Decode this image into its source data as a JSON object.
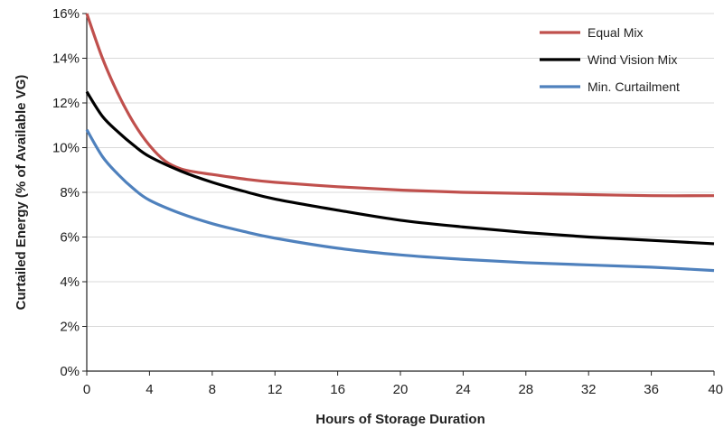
{
  "chart_data": {
    "type": "line",
    "title": "",
    "xlabel": "Hours of Storage Duration",
    "ylabel": "Curtailed Energy (% of Available VG)",
    "xlim": [
      0,
      40
    ],
    "ylim": [
      0,
      16
    ],
    "x_ticks": [
      0,
      4,
      8,
      12,
      16,
      20,
      24,
      28,
      32,
      36,
      40
    ],
    "y_ticks": [
      0,
      2,
      4,
      6,
      8,
      10,
      12,
      14,
      16
    ],
    "x_tick_labels": [
      "0",
      "4",
      "8",
      "12",
      "16",
      "20",
      "24",
      "28",
      "32",
      "36",
      "40"
    ],
    "y_tick_labels": [
      "0%",
      "2%",
      "4%",
      "6%",
      "8%",
      "10%",
      "12%",
      "14%",
      "16%"
    ],
    "grid": "horizontal",
    "legend_position": "top-right",
    "series": [
      {
        "name": "Equal Mix",
        "color": "#c0504d",
        "x": [
          0,
          1,
          2,
          3,
          4,
          5,
          6,
          7,
          8,
          10,
          12,
          16,
          20,
          24,
          28,
          32,
          36,
          40
        ],
        "y": [
          16.0,
          14.0,
          12.4,
          11.1,
          10.1,
          9.4,
          9.05,
          8.9,
          8.8,
          8.6,
          8.45,
          8.25,
          8.1,
          8.0,
          7.95,
          7.9,
          7.85,
          7.85
        ]
      },
      {
        "name": "Wind Vision Mix",
        "color": "#000000",
        "x": [
          0,
          1,
          2,
          3,
          4,
          6,
          8,
          10,
          12,
          16,
          20,
          24,
          28,
          32,
          36,
          40
        ],
        "y": [
          12.5,
          11.4,
          10.7,
          10.1,
          9.6,
          8.95,
          8.45,
          8.05,
          7.7,
          7.2,
          6.75,
          6.45,
          6.2,
          6.0,
          5.85,
          5.7
        ]
      },
      {
        "name": "Min. Curtailment",
        "color": "#4f81bd",
        "x": [
          0,
          1,
          2,
          3,
          4,
          6,
          8,
          10,
          12,
          16,
          20,
          24,
          28,
          32,
          36,
          40
        ],
        "y": [
          10.8,
          9.6,
          8.8,
          8.15,
          7.65,
          7.05,
          6.6,
          6.25,
          5.95,
          5.5,
          5.2,
          5.0,
          4.85,
          4.75,
          4.65,
          4.5
        ]
      }
    ]
  }
}
